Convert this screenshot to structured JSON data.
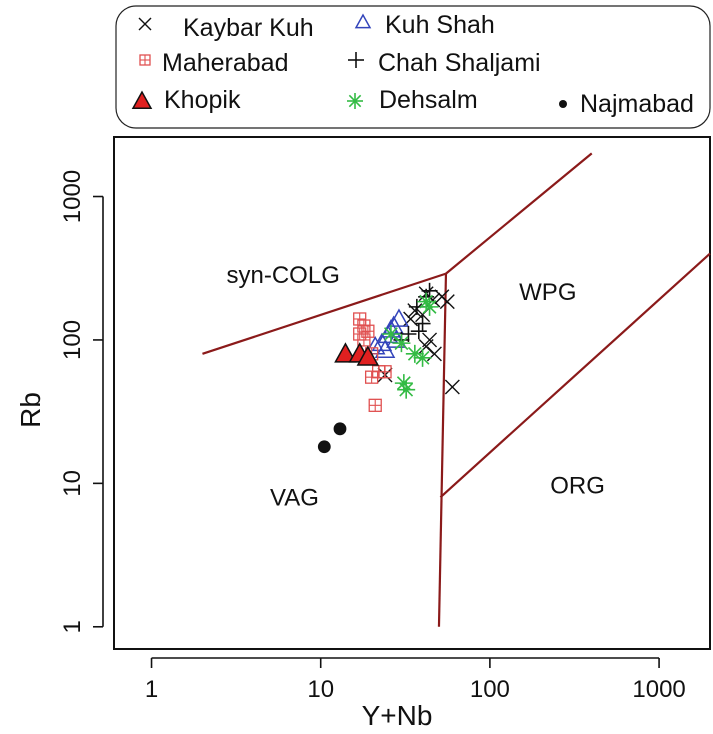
{
  "chart_data": {
    "type": "scatter",
    "xlabel": "Y+Nb",
    "ylabel": "Rb",
    "x_scale": "log",
    "y_scale": "log",
    "xlim": [
      0.6,
      2000
    ],
    "ylim": [
      0.7,
      2600
    ],
    "x_ticks": [
      {
        "value": 1,
        "label": "1"
      },
      {
        "value": 10,
        "label": "10"
      },
      {
        "value": 100,
        "label": "100"
      },
      {
        "value": 1000,
        "label": "1000"
      }
    ],
    "y_ticks": [
      {
        "value": 1,
        "label": "1"
      },
      {
        "value": 10,
        "label": "10"
      },
      {
        "value": 100,
        "label": "100"
      },
      {
        "value": 1000,
        "label": "1000"
      }
    ],
    "grid": false,
    "legend_position": "top",
    "boundary_color": "#8b1a1a",
    "boundaries": [
      {
        "points": [
          [
            2,
            80
          ],
          [
            55,
            290
          ]
        ]
      },
      {
        "points": [
          [
            55,
            290
          ],
          [
            400,
            2000
          ]
        ]
      },
      {
        "points": [
          [
            55,
            290
          ],
          [
            50,
            1
          ]
        ]
      },
      {
        "points": [
          [
            51,
            8
          ],
          [
            2000,
            400
          ]
        ]
      }
    ],
    "fields": [
      {
        "label": "syn-COLG",
        "x": 6,
        "y": 250
      },
      {
        "label": "WPG",
        "x": 220,
        "y": 190
      },
      {
        "label": "VAG",
        "x": 7,
        "y": 7
      },
      {
        "label": "ORG",
        "x": 330,
        "y": 8.5
      }
    ],
    "series": [
      {
        "name": "Kaybar Kuh",
        "marker": "x",
        "color": "#111111",
        "points": [
          [
            42,
            210
          ],
          [
            46,
            190
          ],
          [
            52,
            200
          ],
          [
            56,
            185
          ],
          [
            36,
            160
          ],
          [
            40,
            150
          ],
          [
            34,
            140
          ],
          [
            44,
            100
          ],
          [
            47,
            80
          ],
          [
            60,
            47
          ],
          [
            24,
            57
          ],
          [
            42,
            90
          ]
        ]
      },
      {
        "name": "Kuh Shah",
        "marker": "triangle-open",
        "color": "#3344bb",
        "points": [
          [
            27,
            125
          ],
          [
            29,
            140
          ],
          [
            25,
            108
          ],
          [
            23,
            95
          ],
          [
            21,
            90
          ],
          [
            24,
            85
          ],
          [
            28,
            100
          ],
          [
            26,
            118
          ]
        ]
      },
      {
        "name": "Maherabad",
        "marker": "square-plus",
        "color": "#e05050",
        "points": [
          [
            17,
            140
          ],
          [
            18,
            125
          ],
          [
            19,
            115
          ],
          [
            18,
            100
          ],
          [
            20,
            80
          ],
          [
            22,
            60
          ],
          [
            20,
            55
          ],
          [
            21,
            35
          ],
          [
            17,
            110
          ],
          [
            24,
            60
          ]
        ]
      },
      {
        "name": "Chah Shaljami",
        "marker": "plus",
        "color": "#111111",
        "points": [
          [
            44,
            220
          ],
          [
            42,
            200
          ],
          [
            37,
            170
          ],
          [
            33,
            110
          ],
          [
            40,
            130
          ],
          [
            30,
            100
          ],
          [
            38,
            115
          ]
        ]
      },
      {
        "name": "Khopik",
        "marker": "triangle-filled",
        "color": "#e02020",
        "points": [
          [
            14,
            80
          ],
          [
            17,
            80
          ],
          [
            19,
            76
          ]
        ]
      },
      {
        "name": "Dehsalm",
        "marker": "asterisk",
        "color": "#33bb44",
        "points": [
          [
            42,
            185
          ],
          [
            44,
            170
          ],
          [
            26,
            110
          ],
          [
            30,
            95
          ],
          [
            36,
            80
          ],
          [
            31,
            50
          ],
          [
            32,
            45
          ],
          [
            40,
            75
          ]
        ]
      },
      {
        "name": "Najmabad",
        "marker": "dot",
        "color": "#111111",
        "points": [
          [
            10.5,
            18
          ],
          [
            13,
            24
          ]
        ]
      }
    ]
  }
}
